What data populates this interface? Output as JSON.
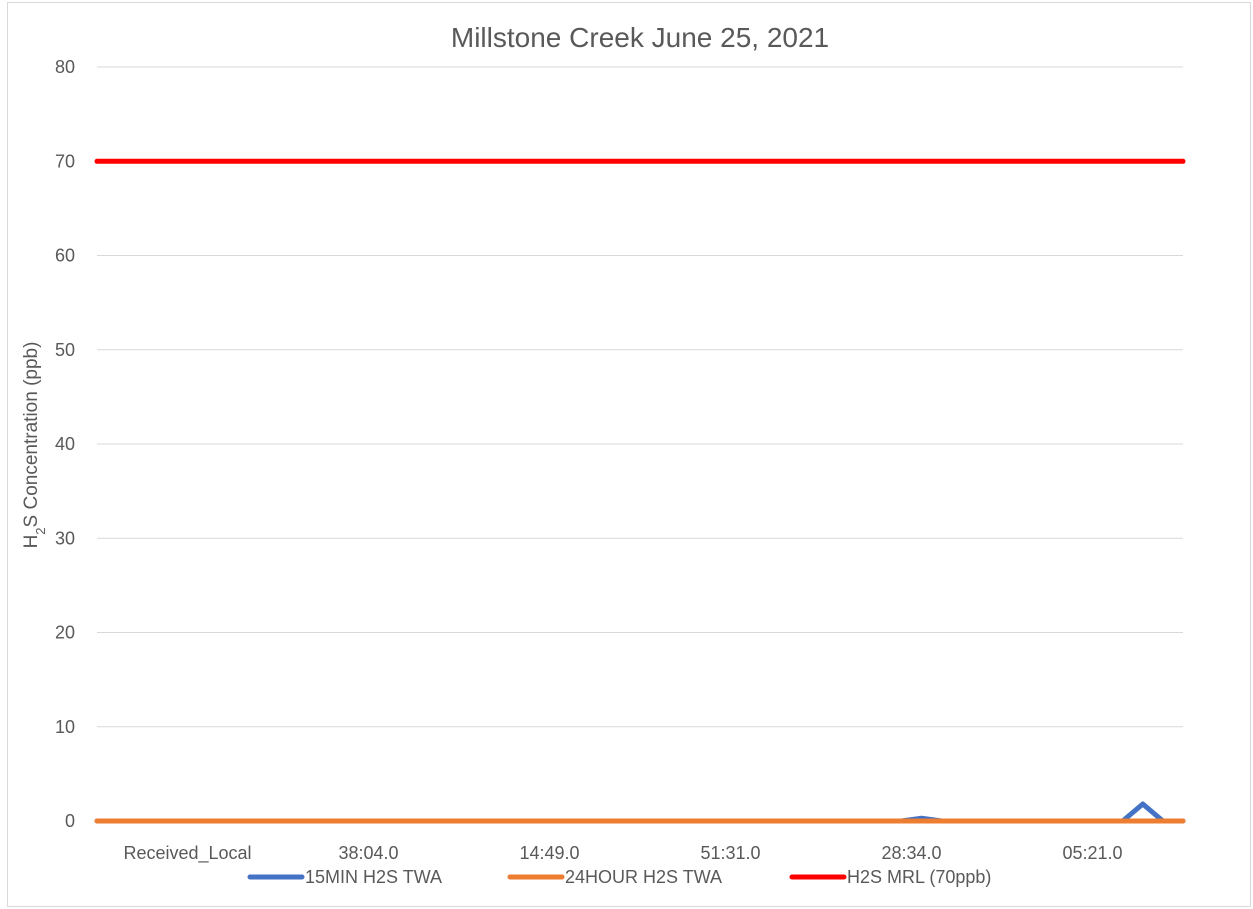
{
  "chart_data": {
    "type": "line",
    "title": "Millstone Creek June 25, 2021",
    "xlabel": "",
    "ylabel": {
      "prefix": "H",
      "subscript": "2",
      "suffix": "S Concentration (ppb)"
    },
    "ylim": [
      0,
      80
    ],
    "yticks": [
      0,
      10,
      20,
      30,
      40,
      50,
      60,
      70,
      80
    ],
    "grid": true,
    "legend_position": "bottom",
    "categories": [
      "Received_Local",
      "38:04.0",
      "14:49.0",
      "51:31.0",
      "28:34.0",
      "05:21.0"
    ],
    "n_points": 55,
    "series": [
      {
        "name": "15MIN H2S TWA",
        "color": "#4472C4",
        "points": [
          [
            0,
            0
          ],
          [
            40,
            0
          ],
          [
            41,
            0.3
          ],
          [
            42,
            0
          ],
          [
            51,
            0
          ],
          [
            52,
            1.8
          ],
          [
            53,
            0
          ],
          [
            54,
            0
          ]
        ]
      },
      {
        "name": "24HOUR H2S TWA",
        "color": "#ED7D31",
        "points": [
          [
            0,
            0
          ],
          [
            54,
            0
          ]
        ]
      },
      {
        "name": "H2S MRL (70ppb)",
        "color": "#FF0000",
        "points": [
          [
            0,
            70
          ],
          [
            54,
            70
          ]
        ]
      }
    ]
  }
}
